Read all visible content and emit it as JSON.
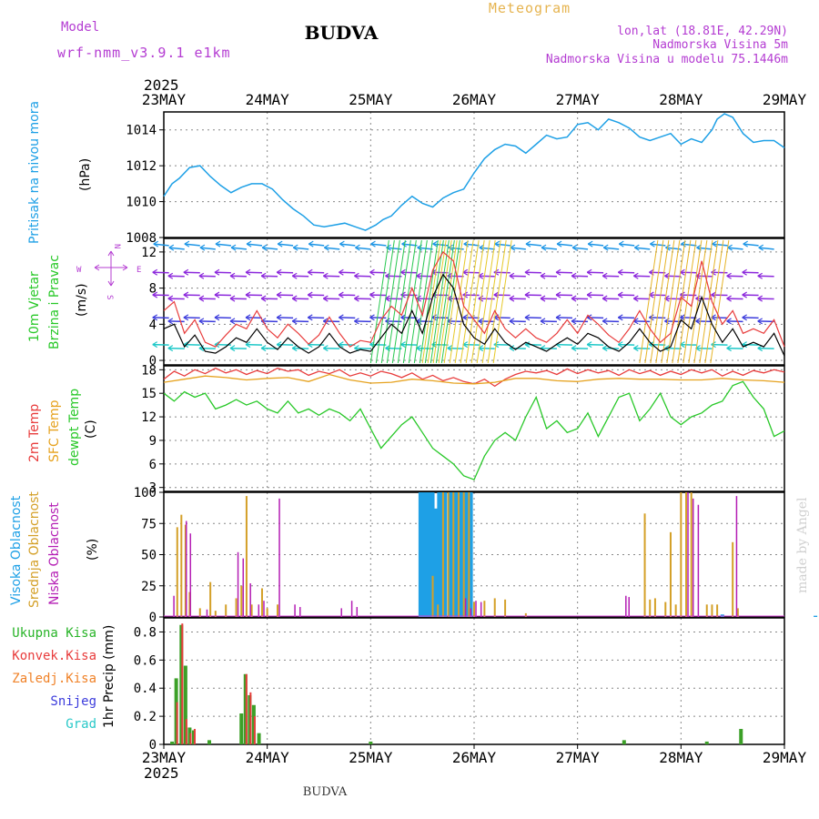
{
  "header": {
    "model_label": "Model",
    "model_name": "wrf-nmm_v3.9.1 e1km",
    "title": "BUDVA",
    "chart_kind": "Meteogram",
    "coords": "lon,lat (18.81E, 42.29N)",
    "altitude": "Nadmorska Visina 5m",
    "model_altitude": "Nadmorska Visina u modelu 75.1446m",
    "year_top": "2025",
    "year_bottom": "2025",
    "footer_title": "BUDVA",
    "watermark": "made by Angel"
  },
  "colors": {
    "pressure": "#1ea0e6",
    "wind_speed": "#000000",
    "wind_gust": "#e83c3c",
    "temp2m": "#e83c3c",
    "sfc_temp": "#e6a21e",
    "dewpt": "#28c828",
    "cloud_high": "#1ea0e6",
    "cloud_mid": "#d4a028",
    "cloud_low": "#b41eb4",
    "precip_total": "#3ca028",
    "precip_conv": "#e83c3c",
    "precip_frozen": "#f08228",
    "snow": "#3c3cdc",
    "hail": "#28c8c8",
    "purple_text": "#b43cd2",
    "grid": "#888888"
  },
  "chart_data": [
    {
      "type": "line",
      "name": "pressure_panel",
      "ylabel_vertical": "Pritisak na nivou mora",
      "unit": "(hPa)",
      "ylim": [
        1008,
        1015
      ],
      "yticks": [
        1008,
        1010,
        1012,
        1014
      ],
      "grid": true,
      "x_days": [
        "23MAY",
        "24MAY",
        "25MAY",
        "26MAY",
        "27MAY",
        "28MAY",
        "29MAY"
      ],
      "series": [
        {
          "key": "pressure",
          "x": [
            0,
            0.08,
            0.15,
            0.25,
            0.35,
            0.45,
            0.55,
            0.65,
            0.75,
            0.85,
            0.95,
            1.05,
            1.15,
            1.25,
            1.35,
            1.45,
            1.55,
            1.65,
            1.75,
            1.85,
            1.95,
            2.05,
            2.12,
            2.2,
            2.3,
            2.4,
            2.5,
            2.6,
            2.7,
            2.8,
            2.9,
            3.0,
            3.1,
            3.2,
            3.3,
            3.4,
            3.5,
            3.6,
            3.7,
            3.8,
            3.9,
            4.0,
            4.1,
            4.2,
            4.3,
            4.4,
            4.5,
            4.6,
            4.7,
            4.8,
            4.9,
            5.0,
            5.1,
            5.2,
            5.3,
            5.35,
            5.42,
            5.5,
            5.6,
            5.7,
            5.8,
            5.9,
            6.0
          ],
          "y": [
            1010.3,
            1011.0,
            1011.3,
            1011.9,
            1012.0,
            1011.4,
            1010.9,
            1010.5,
            1010.8,
            1011.0,
            1011.0,
            1010.7,
            1010.1,
            1009.6,
            1009.2,
            1008.7,
            1008.6,
            1008.7,
            1008.8,
            1008.6,
            1008.4,
            1008.7,
            1009.0,
            1009.2,
            1009.8,
            1010.3,
            1009.9,
            1009.7,
            1010.2,
            1010.5,
            1010.7,
            1011.6,
            1012.4,
            1012.9,
            1013.2,
            1013.1,
            1012.7,
            1013.2,
            1013.7,
            1013.5,
            1013.6,
            1014.3,
            1014.4,
            1014.0,
            1014.6,
            1014.4,
            1014.1,
            1013.6,
            1013.4,
            1013.6,
            1013.8,
            1013.2,
            1013.5,
            1013.3,
            1014.0,
            1014.6,
            1014.9,
            1014.7,
            1013.8,
            1013.3,
            1013.4,
            1013.4,
            1013.0
          ]
        }
      ]
    },
    {
      "type": "line",
      "name": "wind_panel",
      "ylabel_vertical_1": "10m Vjetar",
      "ylabel_vertical_2": "Brzina i Pravac",
      "unit": "(m/s)",
      "compass_n": "N",
      "compass_w": "W",
      "compass_e": "E",
      "compass_s": "S",
      "ylim": [
        -0.5,
        13.5
      ],
      "yticks": [
        0,
        4,
        8,
        12
      ],
      "grid": true,
      "series": [
        {
          "key": "wind_speed",
          "x": [
            0,
            0.1,
            0.2,
            0.3,
            0.4,
            0.5,
            0.6,
            0.7,
            0.8,
            0.9,
            1.0,
            1.1,
            1.2,
            1.3,
            1.4,
            1.5,
            1.6,
            1.7,
            1.8,
            1.9,
            2.0,
            2.1,
            2.2,
            2.3,
            2.4,
            2.5,
            2.6,
            2.7,
            2.8,
            2.9,
            3.0,
            3.1,
            3.2,
            3.3,
            3.4,
            3.5,
            3.6,
            3.7,
            3.8,
            3.9,
            4.0,
            4.1,
            4.2,
            4.3,
            4.4,
            4.5,
            4.6,
            4.7,
            4.8,
            4.9,
            5.0,
            5.1,
            5.2,
            5.3,
            5.4,
            5.5,
            5.6,
            5.7,
            5.8,
            5.9,
            6.0
          ],
          "y": [
            3.5,
            4.0,
            1.5,
            2.8,
            1.0,
            0.8,
            1.5,
            2.5,
            2.0,
            3.5,
            2.0,
            1.2,
            2.5,
            1.5,
            0.8,
            1.5,
            3.0,
            1.5,
            0.8,
            1.2,
            1.0,
            2.5,
            4.0,
            3.0,
            5.5,
            3.0,
            7.0,
            9.5,
            8.0,
            4.0,
            2.5,
            1.8,
            3.5,
            2.0,
            1.2,
            2.0,
            1.5,
            1.0,
            1.8,
            2.5,
            1.8,
            3.0,
            2.5,
            1.5,
            1.0,
            2.0,
            3.5,
            2.0,
            1.0,
            1.5,
            4.5,
            3.5,
            7.0,
            4.0,
            2.0,
            3.5,
            1.5,
            2.0,
            1.5,
            3.0,
            0.5
          ]
        },
        {
          "key": "wind_gust",
          "x": [
            0,
            0.1,
            0.2,
            0.3,
            0.4,
            0.5,
            0.6,
            0.7,
            0.8,
            0.9,
            1.0,
            1.1,
            1.2,
            1.3,
            1.4,
            1.5,
            1.6,
            1.7,
            1.8,
            1.9,
            2.0,
            2.1,
            2.2,
            2.3,
            2.4,
            2.5,
            2.6,
            2.7,
            2.8,
            2.9,
            3.0,
            3.1,
            3.2,
            3.3,
            3.4,
            3.5,
            3.6,
            3.7,
            3.8,
            3.9,
            4.0,
            4.1,
            4.2,
            4.3,
            4.4,
            4.5,
            4.6,
            4.7,
            4.8,
            4.9,
            5.0,
            5.1,
            5.2,
            5.3,
            5.4,
            5.5,
            5.6,
            5.7,
            5.8,
            5.9,
            6.0
          ],
          "y": [
            5.5,
            6.5,
            3.0,
            4.5,
            2.0,
            1.5,
            2.8,
            4.0,
            3.5,
            5.5,
            3.5,
            2.5,
            4.0,
            3.0,
            1.8,
            2.8,
            4.8,
            3.0,
            1.5,
            2.2,
            2.0,
            4.5,
            6.0,
            5.0,
            8.0,
            5.0,
            10.0,
            12.0,
            11.0,
            6.0,
            4.5,
            3.0,
            5.5,
            3.5,
            2.5,
            3.5,
            2.5,
            2.0,
            3.0,
            4.5,
            3.0,
            5.0,
            4.0,
            2.8,
            2.0,
            3.5,
            5.5,
            3.5,
            2.0,
            3.0,
            7.0,
            6.0,
            11.0,
            6.5,
            4.0,
            5.5,
            3.0,
            3.5,
            3.0,
            4.5,
            1.5
          ]
        }
      ]
    },
    {
      "type": "line",
      "name": "temperature_panel",
      "ylabel_vertical_1": "2m Temp",
      "ylabel_vertical_2": "SFC Temp",
      "ylabel_vertical_3": "dewpt Temp",
      "unit": "(C)",
      "ylim": [
        2.5,
        18.5
      ],
      "yticks": [
        3,
        6,
        9,
        12,
        15,
        18
      ],
      "grid": true,
      "series": [
        {
          "key": "temp2m",
          "x": [
            0,
            0.1,
            0.2,
            0.3,
            0.4,
            0.5,
            0.6,
            0.7,
            0.8,
            0.9,
            1.0,
            1.1,
            1.2,
            1.3,
            1.4,
            1.5,
            1.6,
            1.7,
            1.8,
            1.9,
            2.0,
            2.1,
            2.2,
            2.3,
            2.4,
            2.5,
            2.6,
            2.7,
            2.8,
            2.9,
            3.0,
            3.1,
            3.2,
            3.3,
            3.4,
            3.5,
            3.6,
            3.7,
            3.8,
            3.9,
            4.0,
            4.1,
            4.2,
            4.3,
            4.4,
            4.5,
            4.6,
            4.7,
            4.8,
            4.9,
            5.0,
            5.1,
            5.2,
            5.3,
            5.4,
            5.5,
            5.6,
            5.7,
            5.8,
            5.9,
            6.0
          ],
          "y": [
            16.8,
            17.8,
            17.2,
            18.0,
            17.5,
            18.2,
            17.6,
            18.0,
            17.4,
            17.9,
            17.5,
            18.2,
            17.8,
            18.0,
            17.3,
            17.8,
            17.5,
            18.0,
            17.2,
            17.6,
            17.2,
            17.8,
            17.5,
            17.0,
            17.6,
            16.8,
            17.3,
            16.6,
            17.0,
            16.5,
            16.2,
            16.8,
            15.9,
            16.8,
            17.4,
            17.8,
            17.6,
            17.9,
            17.4,
            18.1,
            17.5,
            18.0,
            17.6,
            17.9,
            17.3,
            18.0,
            17.5,
            17.9,
            17.3,
            17.8,
            17.4,
            18.0,
            17.6,
            18.0,
            17.2,
            17.8,
            17.3,
            17.9,
            17.6,
            18.0,
            17.7
          ]
        },
        {
          "key": "sfc_temp",
          "x": [
            0,
            0.2,
            0.4,
            0.6,
            0.8,
            1.0,
            1.2,
            1.4,
            1.6,
            1.8,
            2.0,
            2.2,
            2.4,
            2.6,
            2.8,
            3.0,
            3.2,
            3.4,
            3.6,
            3.8,
            4.0,
            4.2,
            4.4,
            4.6,
            4.8,
            5.0,
            5.2,
            5.4,
            5.6,
            5.8,
            6.0
          ],
          "y": [
            16.4,
            16.8,
            17.2,
            17.0,
            16.7,
            16.9,
            17.0,
            16.5,
            17.4,
            16.7,
            16.3,
            16.4,
            16.8,
            16.6,
            16.3,
            16.2,
            16.4,
            16.9,
            16.9,
            16.6,
            16.5,
            16.8,
            16.9,
            16.8,
            16.8,
            16.7,
            16.7,
            16.9,
            16.7,
            16.6,
            16.4
          ]
        },
        {
          "key": "dewpt",
          "x": [
            0,
            0.1,
            0.2,
            0.3,
            0.4,
            0.5,
            0.6,
            0.7,
            0.8,
            0.9,
            1.0,
            1.1,
            1.2,
            1.3,
            1.4,
            1.5,
            1.6,
            1.7,
            1.8,
            1.9,
            2.0,
            2.1,
            2.2,
            2.3,
            2.4,
            2.5,
            2.6,
            2.7,
            2.8,
            2.9,
            3.0,
            3.1,
            3.2,
            3.3,
            3.4,
            3.5,
            3.6,
            3.7,
            3.8,
            3.9,
            4.0,
            4.1,
            4.2,
            4.3,
            4.4,
            4.5,
            4.6,
            4.7,
            4.8,
            4.9,
            5.0,
            5.1,
            5.2,
            5.3,
            5.4,
            5.5,
            5.6,
            5.7,
            5.8,
            5.9,
            6.0
          ],
          "y": [
            15.0,
            14.0,
            15.2,
            14.5,
            15.0,
            13.0,
            13.5,
            14.2,
            13.5,
            14.0,
            13.0,
            12.5,
            14.0,
            12.5,
            13.0,
            12.2,
            13.0,
            12.5,
            11.5,
            13.0,
            10.5,
            8.0,
            9.5,
            11.0,
            12.0,
            10.0,
            8.0,
            7.0,
            6.0,
            4.5,
            4.0,
            7.0,
            9.0,
            10.0,
            9.0,
            12.0,
            14.5,
            10.5,
            11.5,
            10.0,
            10.5,
            12.5,
            9.5,
            12.0,
            14.5,
            15.0,
            11.5,
            13.0,
            15.0,
            12.0,
            11.0,
            12.0,
            12.5,
            13.5,
            14.0,
            16.0,
            16.5,
            14.5,
            13.0,
            9.5,
            10.2
          ]
        }
      ]
    },
    {
      "type": "bar",
      "name": "cloud_panel",
      "ylabel_vertical_1": "Visoka Oblacnost",
      "ylabel_vertical_2": "Srednja Oblacnost",
      "ylabel_vertical_3": "Niska Oblacnost",
      "unit": "(%)",
      "ylim": [
        0,
        100
      ],
      "yticks": [
        0,
        25,
        50,
        75,
        100
      ],
      "grid": true,
      "series": [
        {
          "key": "cloud_high",
          "x": [
            2.48,
            2.51,
            2.54,
            2.57,
            2.6,
            2.63,
            2.66,
            2.69,
            2.72,
            2.76,
            2.79,
            2.82,
            2.85,
            2.88,
            2.91,
            2.94,
            2.97,
            5.4,
            6.3
          ],
          "y": [
            100,
            100,
            100,
            100,
            100,
            87,
            100,
            100,
            100,
            100,
            100,
            100,
            100,
            100,
            100,
            100,
            100,
            2,
            1
          ]
        },
        {
          "key": "cloud_mid",
          "x": [
            0.13,
            0.17,
            0.21,
            0.25,
            0.35,
            0.45,
            0.5,
            0.6,
            0.7,
            0.75,
            0.8,
            0.85,
            0.95,
            1.0,
            1.1,
            2.6,
            2.65,
            2.7,
            2.75,
            2.8,
            2.85,
            2.9,
            2.95,
            3.0,
            3.1,
            3.2,
            3.3,
            3.5,
            4.65,
            4.7,
            4.75,
            4.85,
            4.9,
            4.95,
            5.0,
            5.05,
            5.1,
            5.25,
            5.3,
            5.35,
            5.5,
            5.55
          ],
          "y": [
            72,
            82,
            74,
            20,
            7,
            28,
            5,
            10,
            15,
            25,
            97,
            10,
            23,
            7,
            10,
            33,
            10,
            100,
            100,
            100,
            100,
            100,
            100,
            12,
            13,
            15,
            14,
            3,
            83,
            14,
            15,
            12,
            68,
            10,
            100,
            100,
            100,
            10,
            10,
            10,
            60,
            7
          ]
        },
        {
          "key": "cloud_low",
          "x": [
            0.08,
            0.2,
            0.24,
            0.4,
            0.7,
            0.75,
            0.82,
            0.9,
            0.95,
            1.1,
            1.25,
            1.3,
            1.7,
            1.8,
            1.85,
            2.9,
            2.95,
            3.0,
            3.05,
            4.45,
            4.48,
            5.05,
            5.1,
            5.15,
            5.52
          ],
          "y": [
            17,
            77,
            67,
            6,
            52,
            47,
            27,
            10,
            13,
            95,
            10,
            8,
            7,
            13,
            8,
            15,
            7,
            13,
            12,
            17,
            16,
            100,
            95,
            90,
            97
          ]
        }
      ]
    },
    {
      "type": "bar",
      "name": "precip_panel",
      "legend": [
        "Ukupna Kisa",
        "Konvek.Kisa",
        "Zaledj.Kisa",
        "Snijeg",
        "Grad"
      ],
      "ylabel": "1hr Precip (mm)",
      "ylim": [
        0,
        0.9
      ],
      "yticks": [
        0,
        0.2,
        0.4,
        0.6,
        0.8
      ],
      "ytick_labels": [
        "0",
        "0.2",
        "0.4",
        "0.6",
        "0.8"
      ],
      "grid": true,
      "series": [
        {
          "key": "precip_total",
          "x": [
            0.08,
            0.12,
            0.17,
            0.21,
            0.25,
            0.29,
            0.44,
            0.75,
            0.79,
            0.83,
            0.87,
            0.92,
            2.0,
            4.45,
            5.25,
            5.58
          ],
          "y": [
            0.02,
            0.47,
            0.85,
            0.56,
            0.12,
            0.1,
            0.03,
            0.22,
            0.5,
            0.35,
            0.28,
            0.08,
            0.02,
            0.03,
            0.02,
            0.11
          ]
        },
        {
          "key": "precip_conv",
          "x": [
            0.12,
            0.17,
            0.21,
            0.25,
            0.29,
            0.79,
            0.83,
            0.87
          ],
          "y": [
            0.3,
            0.86,
            0.18,
            0.08,
            0.11,
            0.5,
            0.37,
            0.2
          ]
        }
      ]
    }
  ]
}
